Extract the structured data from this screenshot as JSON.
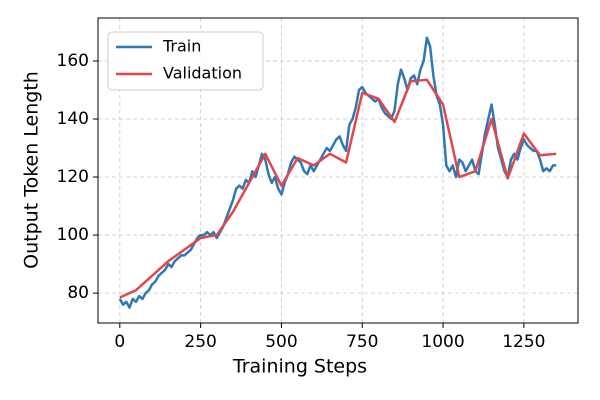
{
  "chart_data": {
    "type": "line",
    "x_label": "Training Steps",
    "y_label": "Output Token Length",
    "xlim": [
      -67.5,
      1417.5
    ],
    "ylim": [
      69.7,
      174.8
    ],
    "xticks": [
      0,
      250,
      500,
      750,
      1000,
      1250
    ],
    "yticks": [
      80,
      100,
      120,
      140,
      160
    ],
    "grid": true,
    "legend": "upper left",
    "series": [
      {
        "name": "Train",
        "color": "#2f78b5",
        "x": [
          0,
          10,
          20,
          30,
          40,
          50,
          60,
          70,
          80,
          90,
          100,
          110,
          120,
          130,
          140,
          150,
          160,
          170,
          180,
          190,
          200,
          210,
          220,
          230,
          240,
          250,
          260,
          270,
          280,
          290,
          300,
          310,
          320,
          330,
          340,
          350,
          360,
          370,
          380,
          390,
          400,
          410,
          420,
          430,
          440,
          450,
          460,
          470,
          480,
          490,
          500,
          510,
          520,
          530,
          540,
          550,
          560,
          570,
          580,
          590,
          600,
          610,
          620,
          630,
          640,
          650,
          660,
          670,
          680,
          690,
          700,
          710,
          720,
          730,
          740,
          750,
          760,
          770,
          780,
          790,
          800,
          810,
          820,
          830,
          840,
          850,
          860,
          870,
          880,
          890,
          900,
          910,
          920,
          930,
          940,
          950,
          960,
          970,
          980,
          990,
          1000,
          1010,
          1020,
          1030,
          1040,
          1050,
          1060,
          1070,
          1080,
          1090,
          1100,
          1110,
          1120,
          1130,
          1140,
          1150,
          1160,
          1170,
          1180,
          1190,
          1200,
          1210,
          1220,
          1230,
          1240,
          1250,
          1260,
          1270,
          1280,
          1290,
          1300,
          1310,
          1320,
          1330,
          1340,
          1350
        ],
        "values": [
          78,
          76,
          77,
          75,
          78,
          77,
          79,
          78,
          80,
          81,
          83,
          84,
          86,
          87,
          88,
          90,
          89,
          91,
          92,
          93,
          93,
          94,
          95,
          97,
          99,
          100,
          100,
          101,
          100,
          101,
          99,
          101,
          103,
          106,
          109,
          112,
          116,
          117,
          116,
          119,
          118,
          122,
          120,
          124,
          128,
          126,
          121,
          118,
          120,
          116,
          114,
          118,
          121,
          125,
          127,
          126,
          125,
          122,
          121,
          124,
          122,
          124,
          126,
          128,
          130,
          129,
          131,
          133,
          134,
          131,
          129,
          138,
          140,
          144,
          150,
          151,
          149,
          148,
          147,
          146,
          147,
          144,
          142,
          141,
          140,
          143,
          152,
          157,
          154,
          150,
          154,
          155,
          152,
          157,
          160,
          168,
          165,
          155,
          148,
          145,
          138,
          124,
          122,
          124,
          120,
          126,
          125,
          122,
          124,
          126,
          122,
          121,
          128,
          135,
          140,
          145,
          138,
          130,
          126,
          122,
          120,
          126,
          128,
          126,
          130,
          133,
          131,
          130,
          129,
          129,
          126,
          122,
          123,
          122,
          124,
          124
        ]
      },
      {
        "name": "Validation",
        "color": "#e0474c",
        "x": [
          0,
          50,
          100,
          150,
          200,
          250,
          300,
          350,
          400,
          450,
          500,
          550,
          600,
          650,
          700,
          750,
          800,
          850,
          900,
          950,
          1000,
          1050,
          1100,
          1150,
          1200,
          1250,
          1300,
          1350
        ],
        "values": [
          78.5,
          81,
          86,
          91,
          95,
          99,
          100,
          108,
          118,
          128,
          117,
          126.5,
          124,
          128,
          125,
          149,
          147,
          139,
          153,
          153.5,
          145,
          120,
          122,
          140,
          119.5,
          135,
          127.5,
          128
        ]
      }
    ]
  }
}
